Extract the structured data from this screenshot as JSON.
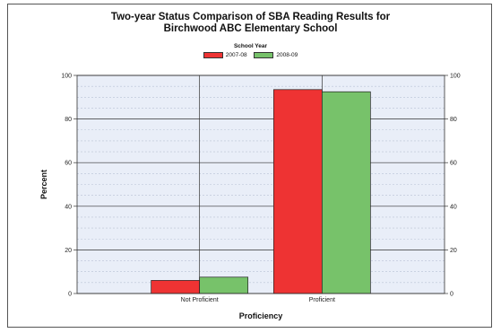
{
  "chart_data": {
    "type": "bar",
    "title": "Two-year Status Comparison of SBA Reading Results for",
    "subtitle": "Birchwood ABC Elementary School",
    "legend_title": "School Year",
    "legend_position": "top-center",
    "xlabel": "Proficiency",
    "ylabel": "Percent",
    "categories": [
      "Not Proficient",
      "Proficient"
    ],
    "series": [
      {
        "name": "2007-08",
        "color": "#ee3333",
        "values": [
          6,
          93.5
        ]
      },
      {
        "name": "2008-09",
        "color": "#77c26a",
        "values": [
          7.5,
          92.5
        ]
      }
    ],
    "ylim": [
      0,
      100
    ],
    "yticks": [
      "0",
      "20",
      "40",
      "60",
      "80",
      "100"
    ],
    "grid": true,
    "plot_background": "#e9eef8"
  }
}
